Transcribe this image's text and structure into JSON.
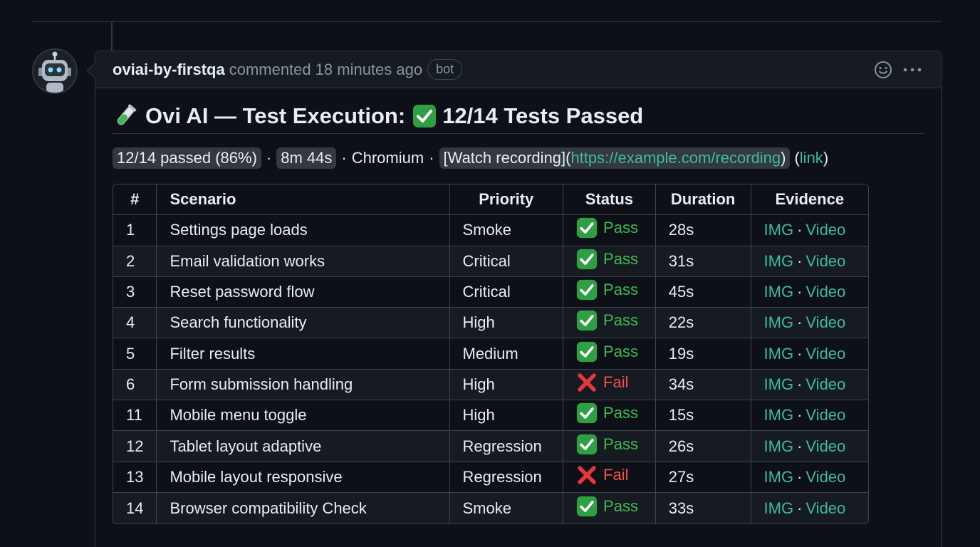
{
  "comment": {
    "author": "oviai-by-firstqa",
    "action": "commented",
    "time": "18 minutes ago",
    "badge": "bot"
  },
  "body": {
    "title_prefix": "Ovi AI — Test Execution:",
    "title_suffix": "12/14 Tests Passed",
    "summary": {
      "passed": "12/14 passed (86%)",
      "duration": "8m 44s",
      "browser": "Chromium",
      "recording_open": "[Watch recording](",
      "recording_url": "https://example.com/recording",
      "recording_close": ")",
      "link_open": "(",
      "link_text": "link",
      "link_close": ")",
      "separator": "·"
    }
  },
  "table": {
    "headers": [
      "#",
      "Scenario",
      "Priority",
      "Status",
      "Duration",
      "Evidence"
    ],
    "rows": [
      {
        "num": "1",
        "scenario": "Settings page loads",
        "priority": "Smoke",
        "status": "Pass",
        "duration": "28s",
        "img": "IMG",
        "video": "Video"
      },
      {
        "num": "2",
        "scenario": "Email validation works",
        "priority": "Critical",
        "status": "Pass",
        "duration": "31s",
        "img": "IMG",
        "video": "Video"
      },
      {
        "num": "3",
        "scenario": "Reset password flow",
        "priority": "Critical",
        "status": "Pass",
        "duration": "45s",
        "img": "IMG",
        "video": "Video"
      },
      {
        "num": "4",
        "scenario": "Search functionality",
        "priority": "High",
        "status": "Pass",
        "duration": "22s",
        "img": "IMG",
        "video": "Video"
      },
      {
        "num": "5",
        "scenario": "Filter results",
        "priority": "Medium",
        "status": "Pass",
        "duration": "19s",
        "img": "IMG",
        "video": "Video"
      },
      {
        "num": "6",
        "scenario": "Form submission handling",
        "priority": "High",
        "status": "Fail",
        "duration": "34s",
        "img": "IMG",
        "video": "Video"
      },
      {
        "num": "11",
        "scenario": "Mobile menu toggle",
        "priority": "High",
        "status": "Pass",
        "duration": "15s",
        "img": "IMG",
        "video": "Video"
      },
      {
        "num": "12",
        "scenario": "Tablet layout adaptive",
        "priority": "Regression",
        "status": "Pass",
        "duration": "26s",
        "img": "IMG",
        "video": "Video"
      },
      {
        "num": "13",
        "scenario": "Mobile layout responsive",
        "priority": "Regression",
        "status": "Fail",
        "duration": "27s",
        "img": "IMG",
        "video": "Video"
      },
      {
        "num": "14",
        "scenario": "Browser compatibility Check",
        "priority": "Smoke",
        "status": "Pass",
        "duration": "33s",
        "img": "IMG",
        "video": "Video"
      }
    ]
  },
  "colors": {
    "pass": "#3fb950",
    "fail": "#f85149",
    "link": "#3fb9a0",
    "background": "#0d1117"
  },
  "icons": {
    "avatar": "robot-icon",
    "title_emoji": "test-tube-icon",
    "title_check": "check-mark-box-icon",
    "pass": "check-mark-box-icon",
    "fail": "cross-mark-icon",
    "reaction": "smiley-icon",
    "more": "kebab-icon"
  }
}
